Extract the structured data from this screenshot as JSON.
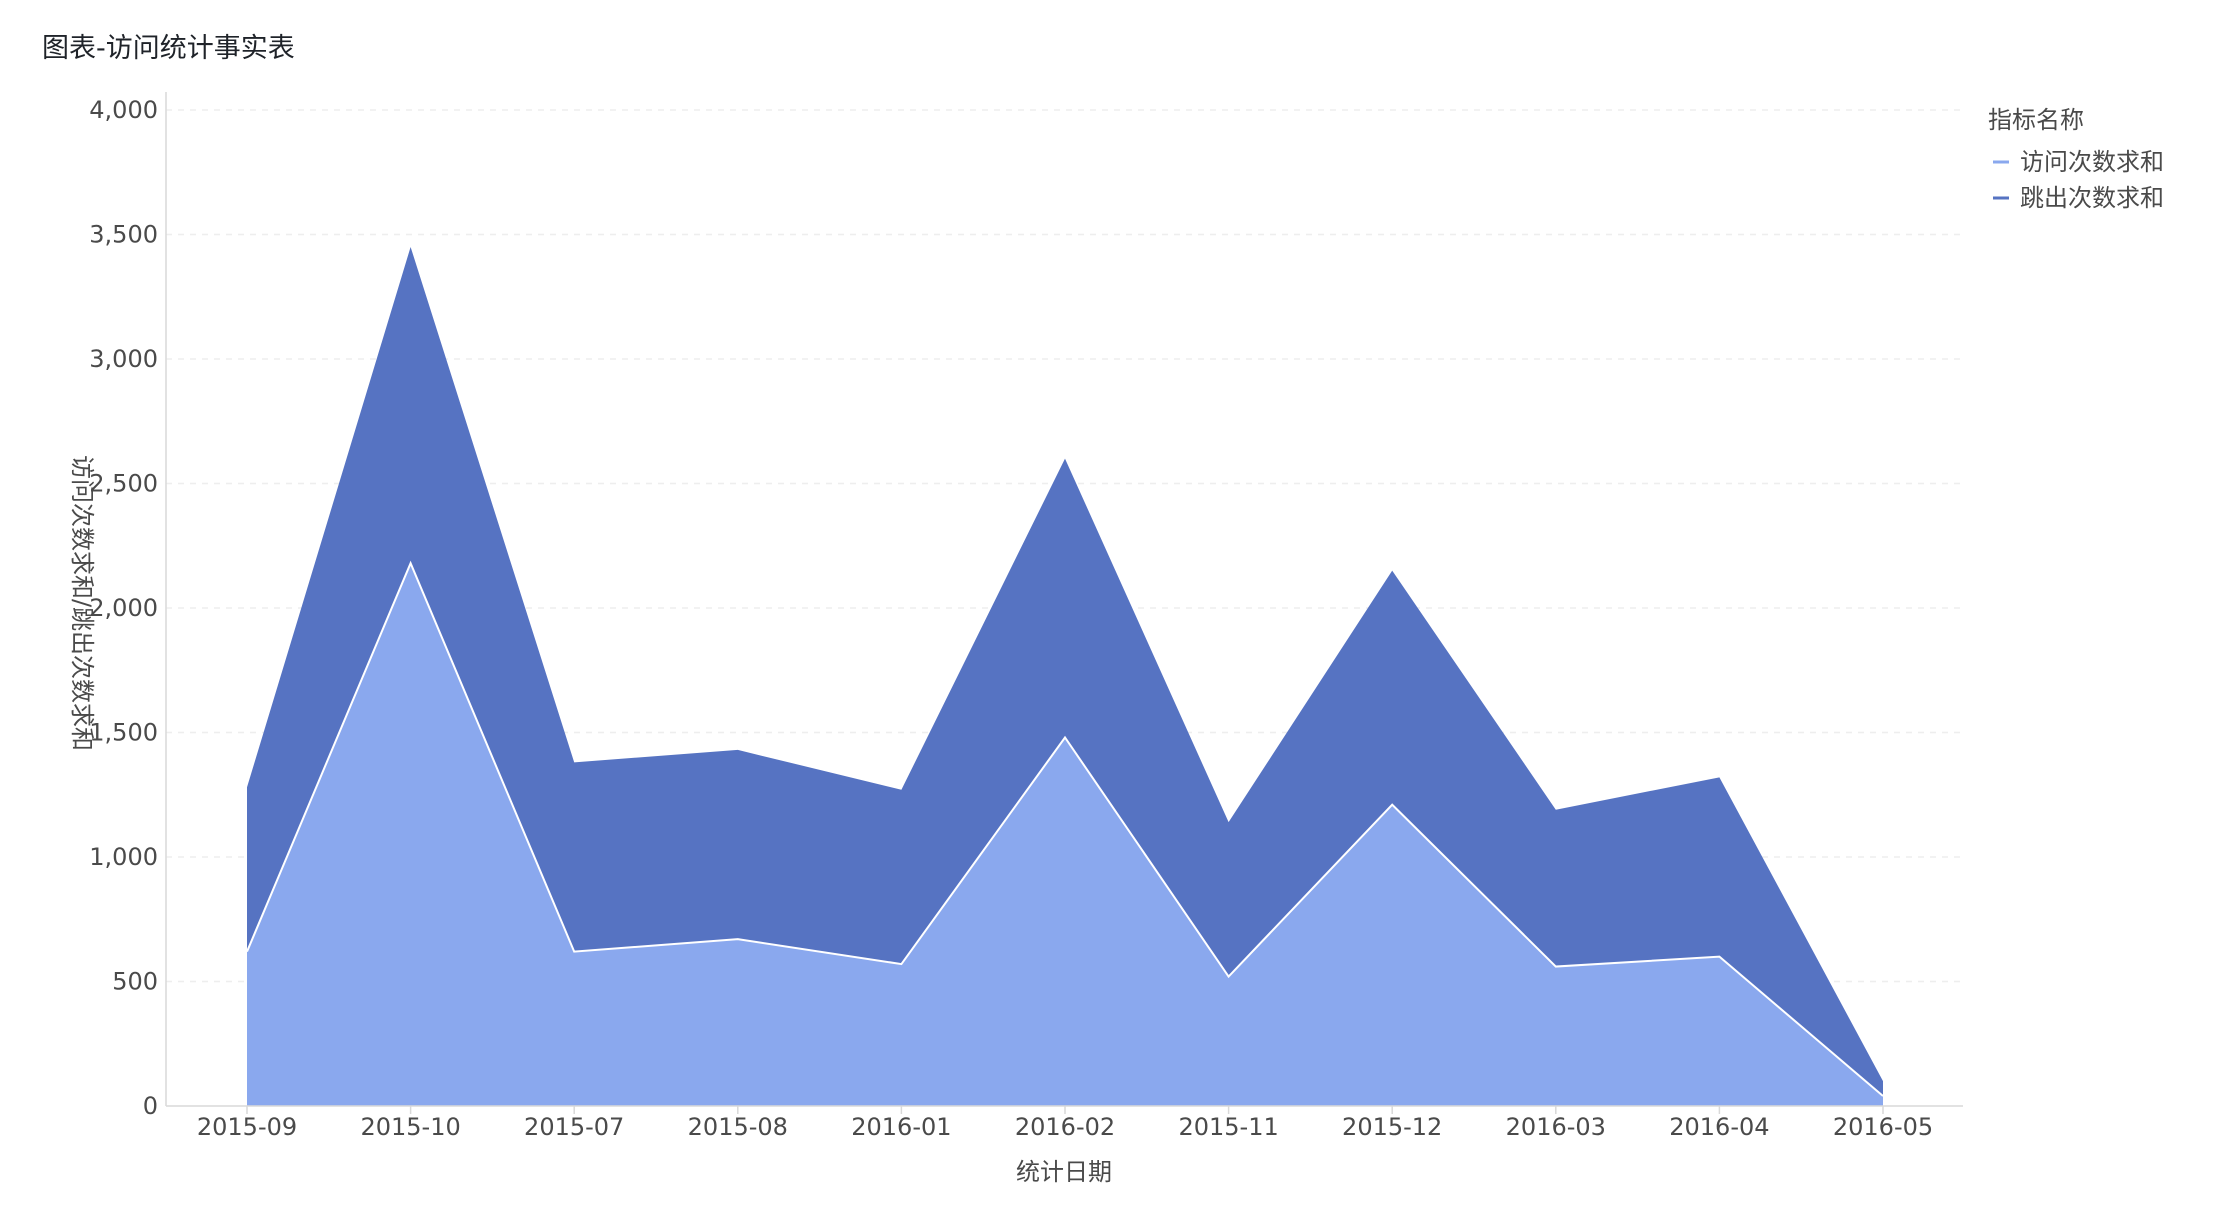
{
  "title": "图表-访问统计事实表",
  "colors": {
    "visits": "#8aa8ee",
    "bounces": "#5673c2",
    "gridline": "#eeeeee",
    "axis_text": "#4a4a4a"
  },
  "chart_data": {
    "type": "area",
    "stacked": true,
    "x_categories": [
      "2015-09",
      "2015-10",
      "2015-07",
      "2015-08",
      "2016-01",
      "2016-02",
      "2015-11",
      "2015-12",
      "2016-03",
      "2016-04",
      "2016-05"
    ],
    "series": [
      {
        "name": "访问次数求和",
        "color": "#8aa8ee",
        "values": [
          620,
          2180,
          620,
          670,
          570,
          1480,
          520,
          1210,
          560,
          600,
          40
        ]
      },
      {
        "name": "跳出次数求和",
        "color": "#5673c2",
        "values": [
          660,
          1270,
          760,
          760,
          700,
          1120,
          620,
          940,
          630,
          720,
          60
        ]
      }
    ],
    "xlabel": "统计日期",
    "ylabel": "访问次数求和/跳出次数求和",
    "ylim": [
      0,
      4000
    ],
    "yticks": [
      0,
      500,
      1000,
      1500,
      2000,
      2500,
      3000,
      3500,
      4000
    ],
    "ytick_labels": [
      "0",
      "500",
      "1,000",
      "1,500",
      "2,000",
      "2,500",
      "3,000",
      "3,500",
      "4,000"
    ],
    "legend_title": "指标名称",
    "legend_position": "top-right",
    "grid": true
  }
}
